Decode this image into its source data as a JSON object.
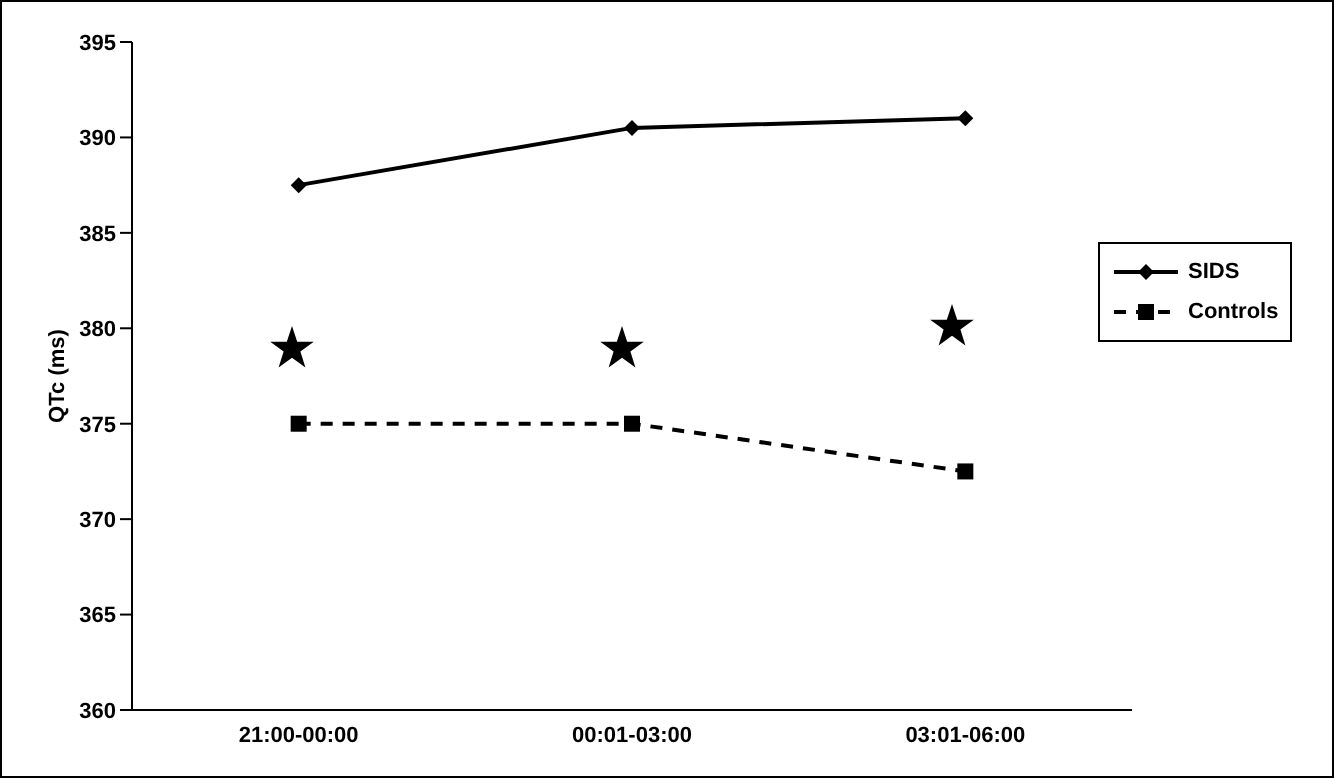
{
  "chart_data": {
    "type": "line",
    "ylabel": "QTc (ms)",
    "categories": [
      "21:00-00:00",
      "00:01-03:00",
      "03:01-06:00"
    ],
    "series": [
      {
        "name": "SIDS",
        "color": "#000000",
        "values": [
          387.5,
          390.5,
          391
        ],
        "marker": "diamond",
        "line_style": "solid"
      },
      {
        "name": "Controls",
        "color": "#000000",
        "values": [
          375,
          375,
          372.5
        ],
        "marker": "square",
        "line_style": "dashed"
      }
    ],
    "ylim": [
      360,
      395
    ],
    "yticks": [
      360,
      365,
      370,
      375,
      380,
      385,
      390,
      395
    ],
    "grid": false,
    "legend": "right"
  }
}
